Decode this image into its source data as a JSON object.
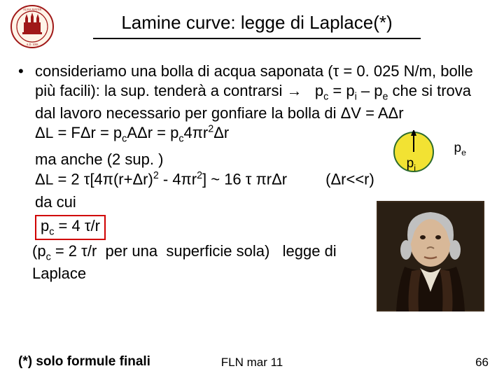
{
  "seal": {
    "outer_color": "#a01818",
    "inner_color": "#fff4e8"
  },
  "title": "Lamine curve: legge di Laplace(*)",
  "bullet_text_html": "consideriamo una bolla di acqua saponata (τ = 0. 025 N/m, bolle più facili): la sup. tenderà a contrarsi →&nbsp;&nbsp;&nbsp;p<sub>c</sub> = p<sub>i</sub> – p<sub>e</sub> che si trova dal lavoro necessario per gonfiare la bolla di ΔV = AΔr<br>Δ<span style='font-size:0.95em'>L</span> = FΔr = p<sub>c</sub>AΔr = p<sub>c</sub>4πr<sup>2</sup>Δr",
  "diagram": {
    "fill": "#f2e233",
    "stroke": "#2d6b2d",
    "arrow_color": "#000000"
  },
  "pe_label_html": "p<sub>e</sub>",
  "pi_label_html": "p<sub>i</sub>",
  "sub1_html": "ma anche (2 sup. )<br>Δ<span style='font-size:0.95em'>L</span> = 2 τ[4π(r+Δr)<sup>2</sup> - 4πr<sup>2</sup>] ~ 16 τ πrΔr&nbsp;&nbsp;&nbsp;&nbsp;&nbsp;&nbsp;&nbsp;&nbsp;&nbsp;(Δr&lt;&lt;r)",
  "sub2_html": "da cui",
  "boxed_formula_html": "p<sub>c</sub> = 4 τ/r",
  "laplace_text_html": "(p<sub>c</sub> = 2 τ/r&nbsp;&nbsp;per una&nbsp;&nbsp;superficie sola)&nbsp;&nbsp;&nbsp;legge di Laplace",
  "portrait": {
    "bg": "#3a2a1a",
    "face": "#d8b898",
    "coat": "#2a1a10",
    "cravat": "#e8e0d0",
    "hair": "#c0c0c0"
  },
  "footnote": "(*) solo formule finali",
  "footer_center": "FLN mar 11",
  "page_num": "66"
}
